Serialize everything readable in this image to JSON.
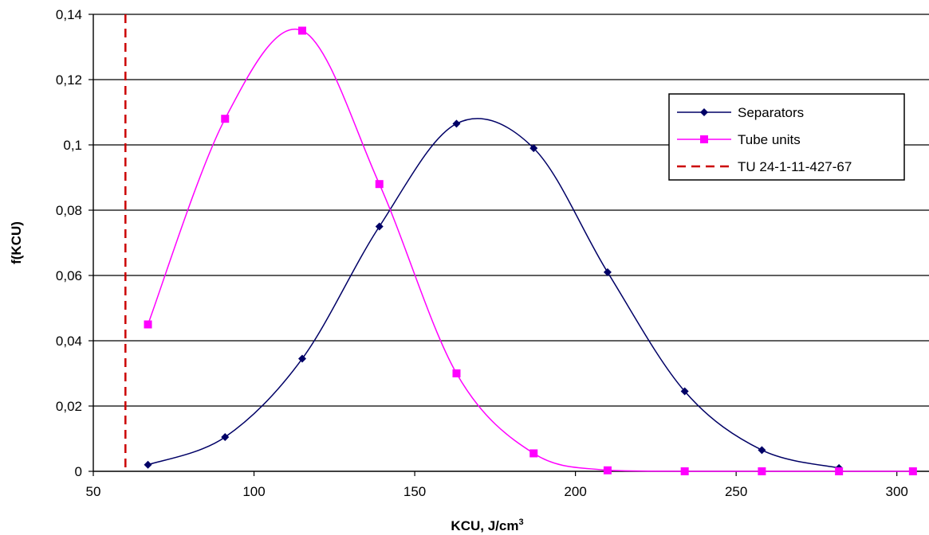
{
  "chart_data": {
    "type": "line",
    "title": "",
    "xlabel": "KCU, J/cm",
    "xlabel_superscript": "3",
    "ylabel": "f(KCU)",
    "xlim": [
      50,
      310
    ],
    "ylim": [
      0,
      0.14
    ],
    "x_ticks": [
      50,
      100,
      150,
      200,
      250,
      300
    ],
    "x_tick_labels": [
      "50",
      "100",
      "150",
      "200",
      "250",
      "300"
    ],
    "y_ticks": [
      0,
      0.02,
      0.04,
      0.06,
      0.08,
      0.1,
      0.12,
      0.14
    ],
    "y_tick_labels": [
      "0",
      "0,02",
      "0,04",
      "0,06",
      "0,08",
      "0,1",
      "0,12",
      "0,14"
    ],
    "grid": "horizontal",
    "legend_position": "right",
    "series": [
      {
        "name": "Separators",
        "color": "#000066",
        "marker": "diamond",
        "x": [
          67,
          91,
          115,
          139,
          163,
          187,
          210,
          234,
          258,
          282
        ],
        "y": [
          0.002,
          0.0105,
          0.0345,
          0.075,
          0.1065,
          0.099,
          0.061,
          0.0245,
          0.0065,
          0.001
        ]
      },
      {
        "name": "Tube units",
        "color": "#ff00ff",
        "marker": "square",
        "x": [
          67,
          91,
          115,
          139,
          163,
          187,
          210,
          234,
          258,
          282,
          305
        ],
        "y": [
          0.045,
          0.108,
          0.135,
          0.088,
          0.03,
          0.0055,
          0.0003,
          0.0,
          0.0,
          0.0,
          0.0
        ]
      }
    ],
    "reference_line": {
      "name": "TU 24-1-11-427-67",
      "color": "#cc0000",
      "style": "dashed",
      "x": 60
    }
  }
}
